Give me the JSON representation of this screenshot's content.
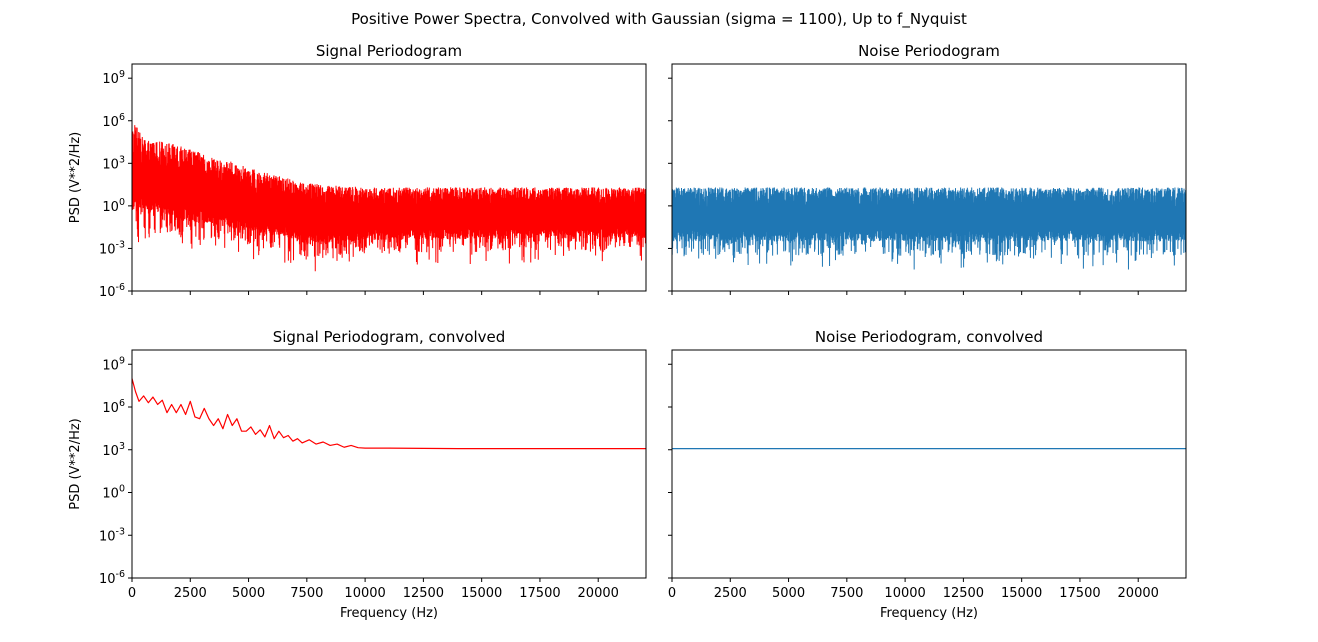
{
  "figure": {
    "suptitle": "Positive Power Spectra, Convolved with Gaussian (sigma = 1100), Up to f_Nyquist"
  },
  "colors": {
    "signal": "#ff0000",
    "noise": "#1f77b4"
  },
  "chart_data": [
    {
      "type": "line",
      "title": "Signal Periodogram",
      "xlabel": "",
      "ylabel": "PSD (V**2/Hz)",
      "xlim": [
        0,
        22050
      ],
      "ylim": [
        1e-06,
        10000000000.0
      ],
      "yscale": "log",
      "xticks": [
        0,
        2500,
        5000,
        7500,
        10000,
        12500,
        15000,
        17500,
        20000
      ],
      "xtick_labels_visible": false,
      "yticks": [
        1e-06,
        0.001,
        1,
        1000.0,
        1000000.0,
        1000000000.0
      ],
      "ytick_labels": [
        "10^-6",
        "10^-3",
        "10^0",
        "10^3",
        "10^6",
        "10^9"
      ],
      "ytick_labels_visible": true,
      "color": "#ff0000",
      "series": [
        {
          "style": "noisy-band",
          "envelope_x": [
            0,
            500,
            1500,
            2500,
            3500,
            4500,
            5500,
            6500,
            7500,
            8500,
            10000,
            22050
          ],
          "upper": [
            1500000.0,
            50000.0,
            30000.0,
            10000.0,
            3000.0,
            1000.0,
            300,
            100,
            40,
            30,
            20,
            20
          ],
          "lower": [
            0.001,
            0.001,
            0.001,
            0.0005,
            0.0005,
            0.0003,
            0.0001,
            0.0001,
            1e-05,
            1e-05,
            5e-05,
            0.0001
          ],
          "center": [
            300,
            80,
            30,
            10,
            5,
            2,
            1,
            0.5,
            0.3,
            0.3,
            0.3,
            0.3
          ]
        }
      ]
    },
    {
      "type": "line",
      "title": "Noise Periodogram",
      "xlabel": "",
      "ylabel": "",
      "xlim": [
        0,
        22050
      ],
      "ylim": [
        1e-06,
        10000000000.0
      ],
      "yscale": "log",
      "xticks": [
        0,
        2500,
        5000,
        7500,
        10000,
        12500,
        15000,
        17500,
        20000
      ],
      "xtick_labels_visible": false,
      "yticks": [
        1e-06,
        0.001,
        1,
        1000.0,
        1000000.0,
        1000000000.0
      ],
      "ytick_labels": [
        "10^-6",
        "10^-3",
        "10^0",
        "10^3",
        "10^6",
        "10^9"
      ],
      "ytick_labels_visible": false,
      "color": "#1f77b4",
      "series": [
        {
          "style": "noisy-band",
          "envelope_x": [
            0,
            22050
          ],
          "upper": [
            20,
            20
          ],
          "lower": [
            3e-05,
            3e-05
          ],
          "center": [
            0.3,
            0.3
          ]
        }
      ]
    },
    {
      "type": "line",
      "title": "Signal Periodogram, convolved",
      "xlabel": "Frequency (Hz)",
      "ylabel": "PSD (V**2/Hz)",
      "xlim": [
        0,
        22050
      ],
      "ylim": [
        1e-06,
        10000000000.0
      ],
      "yscale": "log",
      "xticks": [
        0,
        2500,
        5000,
        7500,
        10000,
        12500,
        15000,
        17500,
        20000
      ],
      "xtick_labels": [
        "0",
        "2500",
        "5000",
        "7500",
        "10000",
        "12500",
        "15000",
        "17500",
        "20000"
      ],
      "xtick_labels_visible": true,
      "yticks": [
        1e-06,
        0.001,
        1,
        1000.0,
        1000000.0,
        1000000000.0
      ],
      "ytick_labels": [
        "10^-6",
        "10^-3",
        "10^0",
        "10^3",
        "10^6",
        "10^9"
      ],
      "ytick_labels_visible": true,
      "color": "#ff0000",
      "series": [
        {
          "style": "line",
          "x": [
            0,
            150,
            300,
            500,
            700,
            900,
            1100,
            1300,
            1500,
            1700,
            1900,
            2100,
            2300,
            2500,
            2700,
            2900,
            3100,
            3300,
            3500,
            3700,
            3900,
            4100,
            4300,
            4500,
            4700,
            4900,
            5100,
            5300,
            5500,
            5700,
            5900,
            6100,
            6300,
            6500,
            6700,
            6900,
            7100,
            7300,
            7600,
            7900,
            8200,
            8500,
            8800,
            9100,
            9400,
            9700,
            10000,
            11000,
            12500,
            14000,
            15500,
            17000,
            18500,
            20000,
            22050
          ],
          "y": [
            100000000.0,
            12000000.0,
            2500000.0,
            6000000.0,
            2000000.0,
            5000000.0,
            1500000.0,
            3000000.0,
            400000.0,
            1500000.0,
            400000.0,
            1500000.0,
            300000.0,
            2500000.0,
            200000.0,
            150000.0,
            800000.0,
            150000.0,
            50000.0,
            150000.0,
            30000.0,
            300000.0,
            50000.0,
            150000.0,
            20000.0,
            20000.0,
            40000.0,
            12000.0,
            25000.0,
            8000.0,
            50000.0,
            6000.0,
            20000.0,
            7000.0,
            10000.0,
            4000.0,
            6000.0,
            3000.0,
            5000.0,
            2500.0,
            3500.0,
            2000.0,
            2500.0,
            1500.0,
            2000.0,
            1400.0,
            1300.0,
            1300.0,
            1250.0,
            1200.0,
            1200.0,
            1200.0,
            1200.0,
            1200.0,
            1200.0
          ]
        }
      ]
    },
    {
      "type": "line",
      "title": "Noise Periodogram, convolved",
      "xlabel": "Frequency (Hz)",
      "ylabel": "",
      "xlim": [
        0,
        22050
      ],
      "ylim": [
        1e-06,
        10000000000.0
      ],
      "yscale": "log",
      "xticks": [
        0,
        2500,
        5000,
        7500,
        10000,
        12500,
        15000,
        17500,
        20000
      ],
      "xtick_labels": [
        "0",
        "2500",
        "5000",
        "7500",
        "10000",
        "12500",
        "15000",
        "17500",
        "20000"
      ],
      "xtick_labels_visible": true,
      "yticks": [
        1e-06,
        0.001,
        1,
        1000.0,
        1000000.0,
        1000000000.0
      ],
      "ytick_labels": [
        "10^-6",
        "10^-3",
        "10^0",
        "10^3",
        "10^6",
        "10^9"
      ],
      "ytick_labels_visible": false,
      "color": "#1f77b4",
      "series": [
        {
          "style": "line",
          "x": [
            0,
            2000,
            4000,
            6000,
            8000,
            10000,
            12000,
            14000,
            16000,
            18000,
            20000,
            22050
          ],
          "y": [
            1200.0,
            1200.0,
            1200.0,
            1200.0,
            1200.0,
            1200.0,
            1200.0,
            1200.0,
            1200.0,
            1200.0,
            1200.0,
            1200.0
          ]
        }
      ]
    }
  ]
}
